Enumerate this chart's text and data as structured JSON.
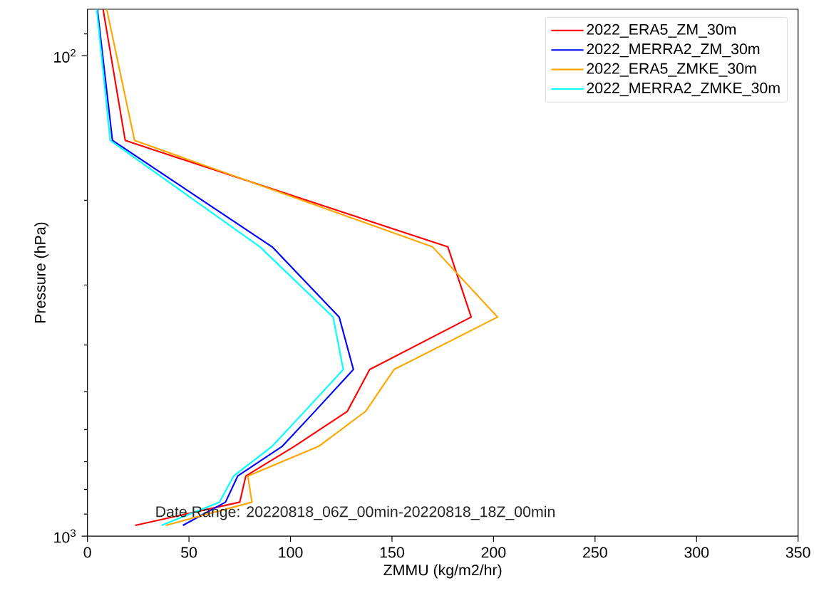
{
  "chart_data": {
    "type": "line",
    "xlabel": "ZMMU (kg/m2/hr)",
    "ylabel": "Pressure (hPa)",
    "log": "y",
    "grid": false,
    "legend": "top right",
    "marker": "none",
    "line_style": "solid",
    "xlim": [
      0,
      350
    ],
    "xticks": [
      0,
      50,
      100,
      150,
      200,
      250,
      300,
      350
    ],
    "ylim": [
      1000,
      80
    ],
    "yticks": [
      {
        "value": 100,
        "label": "10$^{2}$"
      },
      {
        "value": 1000,
        "label": "10$^{3}$"
      },
      {
        "value": 90,
        "label": null
      },
      {
        "value": 200,
        "label": null
      },
      {
        "value": 300,
        "label": null
      },
      {
        "value": 400,
        "label": null
      },
      {
        "value": 500,
        "label": null
      },
      {
        "value": 600,
        "label": null
      },
      {
        "value": 700,
        "label": null
      },
      {
        "value": 800,
        "label": null
      },
      {
        "value": 900,
        "label": null
      }
    ],
    "annotations": [
      "Date Range: 20220818_06Z_00min-20220818_18Z_00min"
    ],
    "series": [
      {
        "name": "2022_ERA5_ZM_30m",
        "color": "#ff0000",
        "x": [
          7.7,
          18.6,
          177.5,
          189,
          139,
          128,
          102,
          78,
          75,
          23.5
        ],
        "values": [
          80,
          150,
          250,
          350,
          450,
          550,
          650,
          750,
          850,
          950
        ]
      },
      {
        "name": "2022_MERRA2_ZM_30m",
        "color": "#0000ff",
        "x": [
          4.9,
          12.3,
          91,
          124,
          131,
          112,
          96,
          74,
          68,
          47
        ],
        "values": [
          80,
          150,
          250,
          350,
          450,
          550,
          650,
          750,
          850,
          950
        ]
      },
      {
        "name": "2022_ERA5_ZMKE_30m",
        "color": "#ffa500",
        "x": [
          9.5,
          23.2,
          170,
          202,
          151,
          137,
          114,
          79,
          81,
          38.6
        ],
        "values": [
          80,
          150,
          250,
          350,
          450,
          550,
          650,
          750,
          850,
          950
        ]
      },
      {
        "name": "2022_MERRA2_ZMKE_30m",
        "color": "#00ffff",
        "x": [
          4.6,
          11.2,
          85,
          121,
          126,
          107,
          91,
          72,
          65,
          36.5
        ],
        "values": [
          80,
          150,
          250,
          350,
          450,
          550,
          650,
          750,
          850,
          950
        ]
      }
    ]
  }
}
